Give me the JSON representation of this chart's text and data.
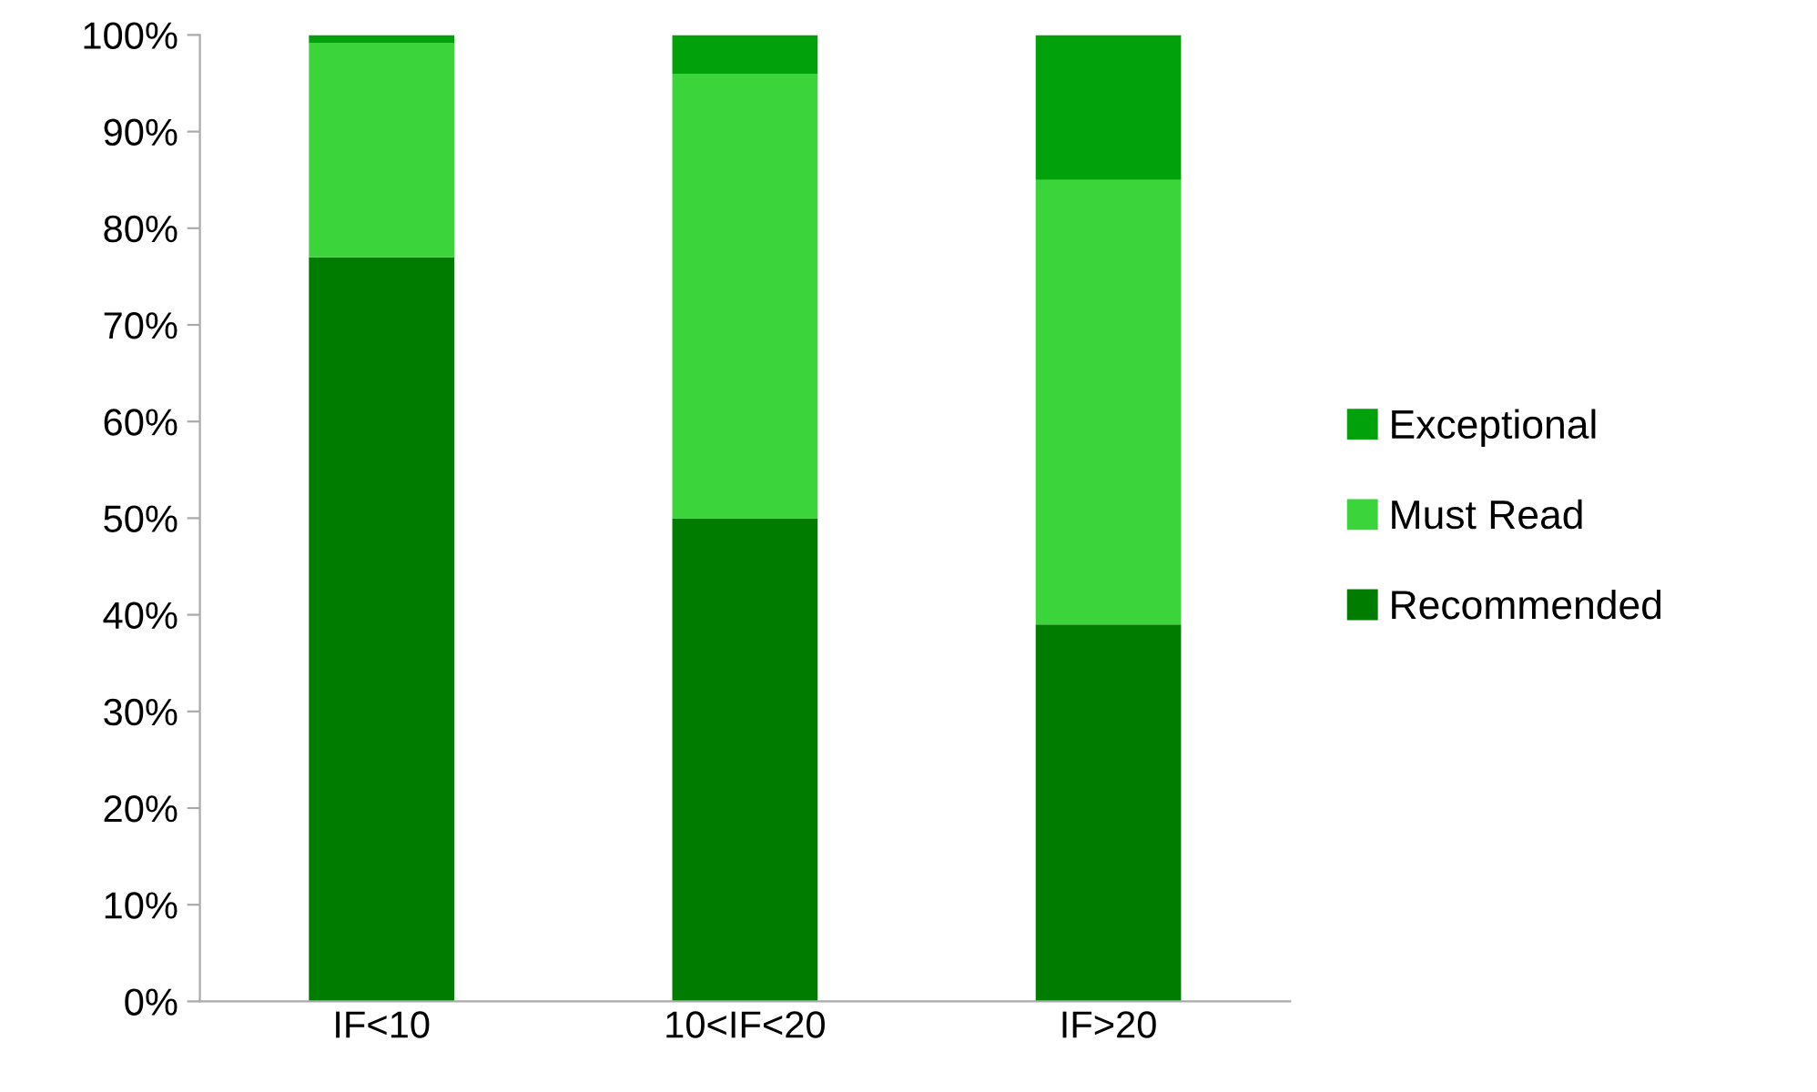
{
  "chart_data": {
    "type": "bar",
    "stacked": true,
    "categories": [
      "IF<10",
      "10<IF<20",
      "IF>20"
    ],
    "series": [
      {
        "name": "Recommended",
        "color": "#007d00",
        "values": [
          77,
          50,
          39
        ]
      },
      {
        "name": "Must Read",
        "color": "#3bd53b",
        "values": [
          22.2,
          46,
          46
        ]
      },
      {
        "name": "Exceptional",
        "color": "#00a10a",
        "values": [
          0.8,
          4,
          15
        ]
      }
    ],
    "ylim": [
      0,
      100
    ],
    "yticks": [
      {
        "value": 0,
        "label": "0%"
      },
      {
        "value": 10,
        "label": "10%"
      },
      {
        "value": 20,
        "label": "20%"
      },
      {
        "value": 30,
        "label": "30%"
      },
      {
        "value": 40,
        "label": "40%"
      },
      {
        "value": 50,
        "label": "50%"
      },
      {
        "value": 60,
        "label": "60%"
      },
      {
        "value": 70,
        "label": "70%"
      },
      {
        "value": 80,
        "label": "80%"
      },
      {
        "value": 90,
        "label": "90%"
      },
      {
        "value": 100,
        "label": "100%"
      }
    ],
    "grid": false,
    "legend": "right"
  }
}
